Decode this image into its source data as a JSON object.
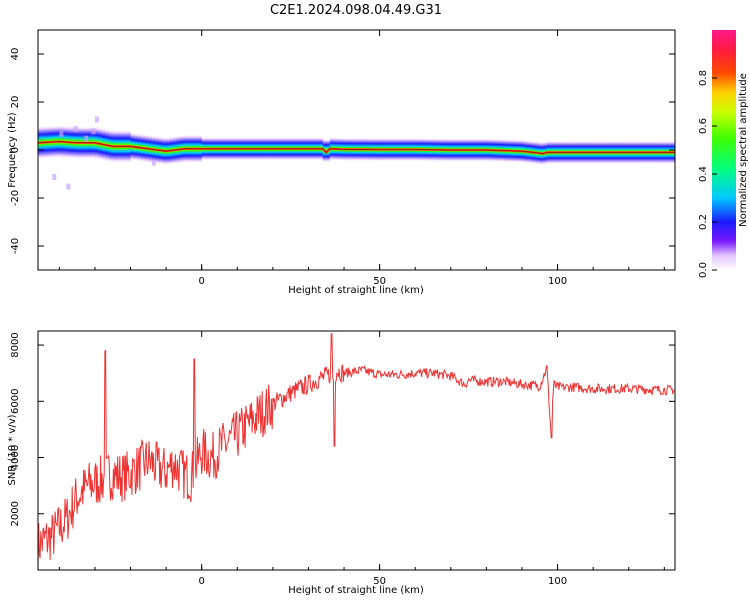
{
  "title": "C2E1.2024.098.04.49.G31",
  "chart_data": [
    {
      "type": "heatmap",
      "xlabel": "Height of straight line (km)",
      "ylabel": "Frequency (Hz)",
      "xlim": [
        -46,
        133
      ],
      "ylim": [
        -50,
        50
      ],
      "xticks": [
        0,
        50,
        100
      ],
      "yticks": [
        -40,
        -20,
        0,
        20,
        40
      ],
      "colorbar": {
        "label": "Normalized spectral amplitude",
        "range": [
          0.0,
          1.0
        ],
        "ticks": [
          "0.0",
          "0.2",
          "0.4",
          "0.6",
          "0.8"
        ],
        "colormap": "gist_ncar-like (white, violet, blue, cyan, green, yellow, orange, red, magenta)"
      },
      "peak_frequency_trace": {
        "x": [
          -46,
          -40,
          -35,
          -30,
          -25,
          -20,
          -15,
          -10,
          -5,
          0,
          10,
          20,
          30,
          34,
          35,
          36,
          40,
          50,
          60,
          70,
          80,
          90,
          96,
          97,
          100,
          110,
          120,
          133
        ],
        "y": [
          3,
          3.5,
          3,
          3,
          1.5,
          1.5,
          0.5,
          -0.5,
          0.5,
          0.5,
          0.5,
          0.5,
          0.5,
          0.5,
          -1,
          0.5,
          0.3,
          0.2,
          0.2,
          0,
          0,
          -0.5,
          -1.5,
          -1,
          -1,
          -1,
          -1,
          -1
        ]
      }
    },
    {
      "type": "line",
      "xlabel": "Height of straight line (km)",
      "ylabel": "SNR (10 * v/v)",
      "xlim": [
        -46,
        133
      ],
      "ylim": [
        0,
        8500
      ],
      "xticks": [
        0,
        50,
        100
      ],
      "yticks": [
        2000,
        4000,
        6000,
        8000
      ],
      "series": [
        {
          "color": "#ee3333",
          "x": [
            -46,
            -42,
            -38,
            -35,
            -32,
            -28,
            -25,
            -22,
            -18,
            -15,
            -12,
            -10,
            -8,
            -5,
            -3,
            0,
            3,
            5,
            8,
            10,
            15,
            20,
            25,
            30,
            33,
            35,
            36,
            37,
            38,
            40,
            45,
            50,
            55,
            60,
            65,
            70,
            74,
            75,
            80,
            85,
            90,
            95,
            97,
            98,
            99,
            100,
            105,
            110,
            120,
            130,
            133
          ],
          "y": [
            900,
            1200,
            1800,
            2600,
            3000,
            3200,
            3400,
            3300,
            3600,
            3900,
            3600,
            3500,
            3800,
            3400,
            3300,
            4200,
            4000,
            4300,
            4600,
            4800,
            5400,
            5900,
            6300,
            6600,
            6800,
            6900,
            6950,
            6800,
            7100,
            7000,
            7100,
            6950,
            6950,
            7000,
            7000,
            6900,
            6600,
            6750,
            6700,
            6700,
            6600,
            6550,
            7200,
            5200,
            6600,
            6500,
            6500,
            6450,
            6450,
            6400,
            6400
          ]
        }
      ]
    }
  ]
}
